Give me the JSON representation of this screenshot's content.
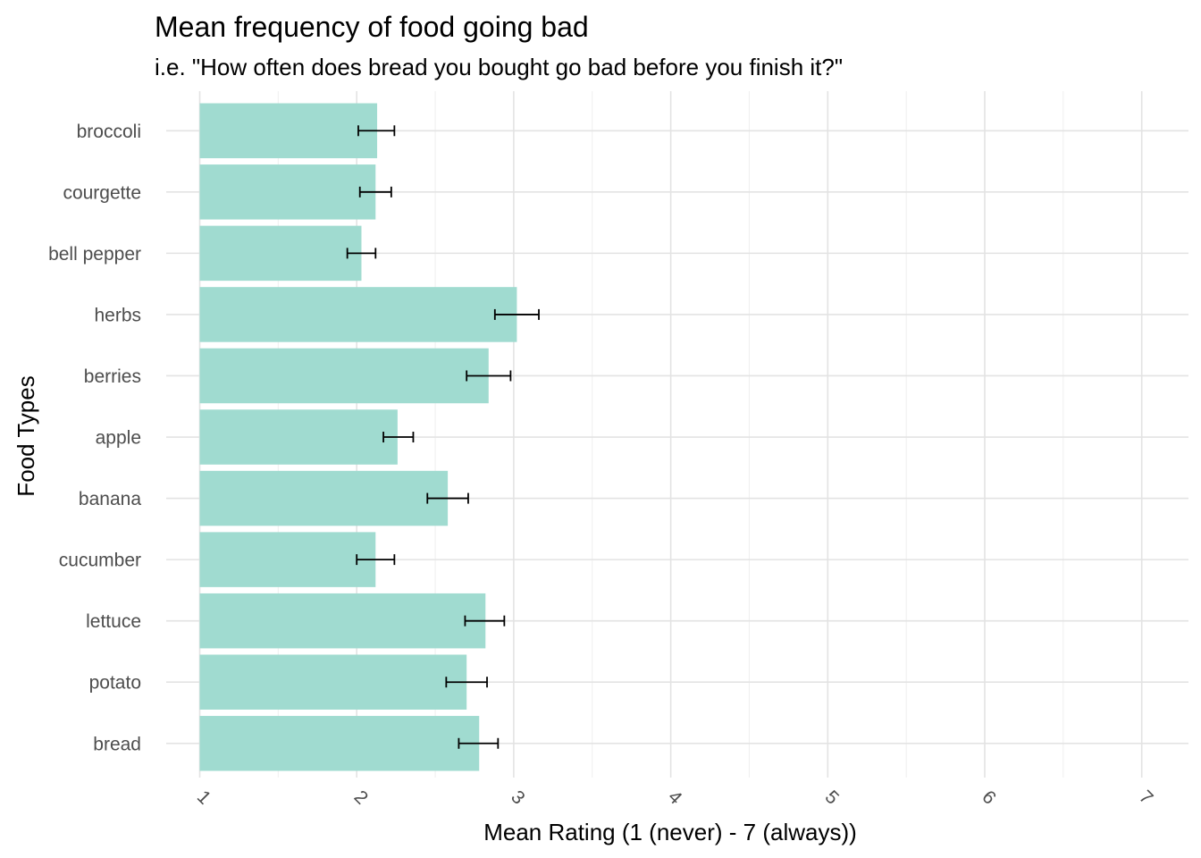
{
  "chart_data": {
    "type": "bar",
    "orientation": "horizontal",
    "title": "Mean frequency of food going bad",
    "subtitle": "i.e. \"How often does bread you bought go bad before you finish it?\"",
    "xlabel": "Mean Rating (1 (never) - 7 (always))",
    "ylabel": "Food Types",
    "xlim": [
      1,
      7
    ],
    "x_ticks": [
      "1",
      "2",
      "3",
      "4",
      "5",
      "6",
      "7"
    ],
    "grid": true,
    "legend": "none",
    "bar_color": "#a0dbd0",
    "errorbar_color": "#000000",
    "categories": [
      "broccoli",
      "courgette",
      "bell pepper",
      "herbs",
      "berries",
      "apple",
      "banana",
      "cucumber",
      "lettuce",
      "potato",
      "bread"
    ],
    "values": [
      2.13,
      2.12,
      2.03,
      3.02,
      2.84,
      2.26,
      2.58,
      2.12,
      2.82,
      2.7,
      2.78
    ],
    "error_low": [
      2.01,
      2.02,
      1.94,
      2.88,
      2.7,
      2.17,
      2.45,
      2.0,
      2.69,
      2.57,
      2.65
    ],
    "error_high": [
      2.24,
      2.22,
      2.12,
      3.16,
      2.98,
      2.36,
      2.71,
      2.24,
      2.94,
      2.83,
      2.9
    ]
  }
}
